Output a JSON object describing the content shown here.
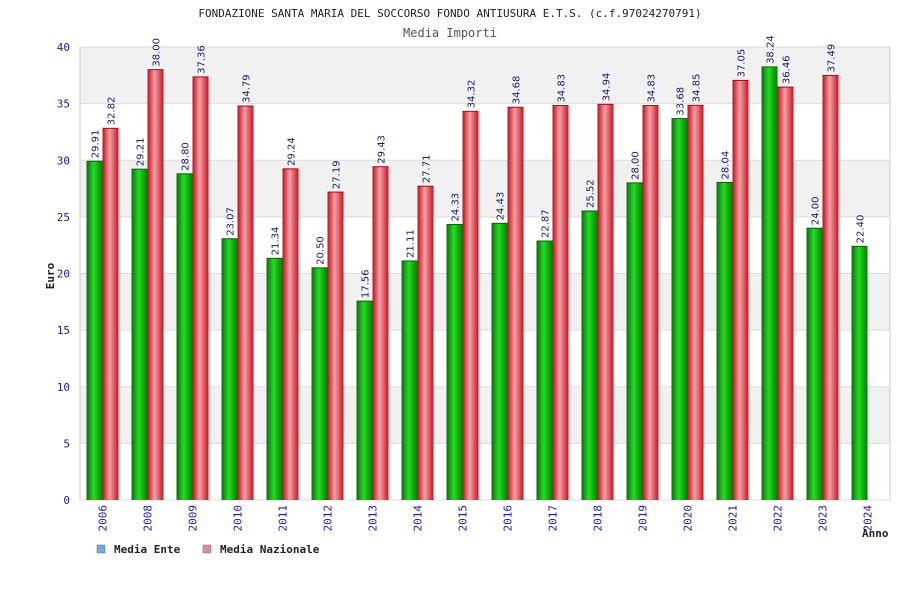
{
  "chart_data": {
    "type": "bar",
    "title": "FONDAZIONE SANTA MARIA DEL SOCCORSO FONDO ANTIUSURA E.T.S. (c.f.97024270791)",
    "subtitle": "Media Importi",
    "xlabel": "Anno",
    "ylabel": "Euro",
    "ylim": [
      0,
      40
    ],
    "yticks": [
      "0",
      "5",
      "10",
      "15",
      "20",
      "25",
      "30",
      "35",
      "40"
    ],
    "grid": true,
    "legend_position": "bottom-left",
    "categories": [
      "2006",
      "2008",
      "2009",
      "2010",
      "2011",
      "2012",
      "2013",
      "2014",
      "2015",
      "2016",
      "2017",
      "2018",
      "2019",
      "2020",
      "2021",
      "2022",
      "2023",
      "2024"
    ],
    "series": [
      {
        "name": "Media Ente",
        "color": "#11a811",
        "legend_color": "#6ea8e8",
        "values": [
          29.91,
          29.21,
          28.8,
          23.07,
          21.34,
          20.5,
          17.56,
          21.11,
          24.33,
          24.43,
          22.87,
          25.52,
          28.0,
          33.68,
          28.04,
          38.24,
          24.0,
          22.4
        ],
        "labels": [
          "29.91",
          "29.21",
          "28.80",
          "23.07",
          "21.34",
          "20.50",
          "17.56",
          "21.11",
          "24.33",
          "24.43",
          "22.87",
          "25.52",
          "28.00",
          "33.68",
          "28.04",
          "38.24",
          "24.00",
          "22.40"
        ]
      },
      {
        "name": "Media Nazionale",
        "color": "#e8202a",
        "legend_color": "#d88aa8",
        "values": [
          32.82,
          38.0,
          37.36,
          34.79,
          29.24,
          27.19,
          29.43,
          27.71,
          34.32,
          34.68,
          34.83,
          34.94,
          34.83,
          34.85,
          37.05,
          36.46,
          37.49,
          null
        ],
        "labels": [
          "32.82",
          "38.00",
          "37.36",
          "34.79",
          "29.24",
          "27.19",
          "29.43",
          "27.71",
          "34.32",
          "34.68",
          "34.83",
          "34.94",
          "34.83",
          "34.85",
          "37.05",
          "36.46",
          "37.49",
          ""
        ]
      }
    ]
  }
}
